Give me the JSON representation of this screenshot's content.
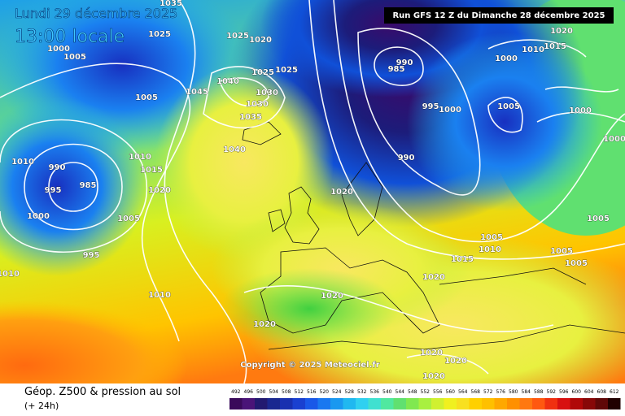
{
  "header": {
    "date": "Lundi 29 décembre 2025",
    "time": "13:00 locale",
    "run": "Run GFS 12 Z du Dimanche 28 décembre 2025"
  },
  "footer": {
    "copyright": "Copyright © 2025 Meteociel.fr",
    "title": "Géop. Z500 & pression au sol",
    "lead": "(+ 24h)"
  },
  "isobar_labels": [
    1035,
    1025,
    1025,
    1020,
    1000,
    1005,
    1005,
    1040,
    1045,
    1030,
    1030,
    1025,
    1025,
    1035,
    1040,
    1010,
    990,
    995,
    985,
    1010,
    1015,
    1020,
    1000,
    1005,
    995,
    1010,
    1010,
    1020,
    1020,
    1020,
    1020,
    1020,
    1020,
    1005,
    1010,
    1015,
    1020,
    1005,
    1005,
    1005,
    990,
    985,
    990,
    995,
    1000,
    1005,
    1000,
    1010,
    1015,
    1020,
    1000,
    1000
  ],
  "legend": {
    "values": [
      492,
      496,
      500,
      504,
      508,
      512,
      516,
      520,
      524,
      528,
      532,
      536,
      540,
      544,
      548,
      552,
      556,
      560,
      564,
      568,
      572,
      576,
      580,
      584,
      588,
      592,
      596,
      600,
      604,
      608,
      612
    ],
    "colors": [
      "#3a0a5a",
      "#4a1478",
      "#221a70",
      "#1a2890",
      "#1830b0",
      "#1a40d0",
      "#1a58e8",
      "#1a78f0",
      "#1a98f0",
      "#20b8f0",
      "#30d0f0",
      "#40e0d0",
      "#50e8a0",
      "#60e070",
      "#80e850",
      "#a8f040",
      "#d0f030",
      "#f0f020",
      "#f8e020",
      "#ffd000",
      "#ffc000",
      "#ffa800",
      "#ff9000",
      "#ff7810",
      "#ff5810",
      "#f03010",
      "#d81010",
      "#b00808",
      "#880808",
      "#600808",
      "#200000"
    ]
  }
}
